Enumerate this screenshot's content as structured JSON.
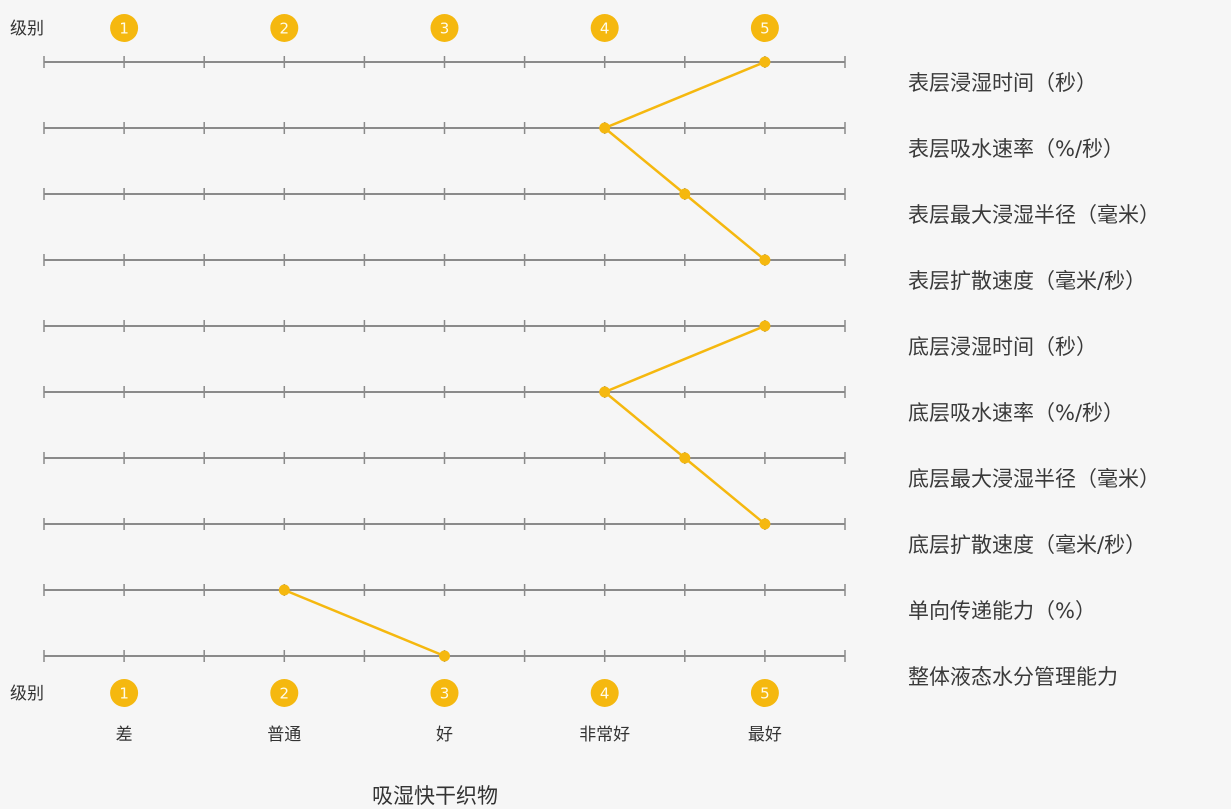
{
  "chart_data": {
    "type": "line",
    "title": "吸湿快干织物",
    "level_label": "级别",
    "levels": [
      "1",
      "2",
      "3",
      "4",
      "5"
    ],
    "grades": [
      "差",
      "普通",
      "好",
      "非常好",
      "最好"
    ],
    "scale_range": [
      0.5,
      5.5
    ],
    "grid": false,
    "color": "#f5b80f",
    "rows": [
      {
        "label": "表层浸湿时间（秒）",
        "value": 5
      },
      {
        "label": "表层吸水速率（%/秒）",
        "value": 4
      },
      {
        "label": "表层最大浸湿半径（毫米）",
        "value": 4.5
      },
      {
        "label": "表层扩散速度（毫米/秒）",
        "value": 5
      },
      {
        "label": "底层浸湿时间（秒）",
        "value": 5
      },
      {
        "label": "底层吸水速率（%/秒）",
        "value": 4
      },
      {
        "label": "底层最大浸湿半径（毫米）",
        "value": 4.5
      },
      {
        "label": "底层扩散速度（毫米/秒）",
        "value": 5
      },
      {
        "label": "单向传递能力（%）",
        "value": 2
      },
      {
        "label": "整体液态水分管理能力",
        "value": 3
      }
    ],
    "segments": [
      [
        0,
        1,
        2,
        3
      ],
      [
        4,
        5,
        6,
        7
      ],
      [
        8,
        9
      ]
    ]
  }
}
